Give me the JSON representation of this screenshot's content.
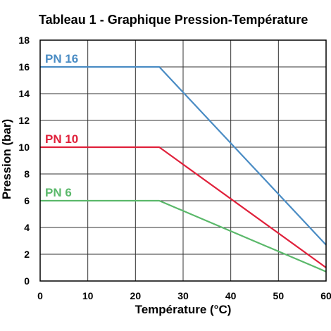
{
  "chart_data": {
    "type": "line",
    "title": "Tableau 1 - Graphique Pression-Température",
    "xlabel": "Température (°C)",
    "ylabel": "Pression (bar)",
    "xlim": [
      0,
      60
    ],
    "ylim": [
      0,
      18
    ],
    "xticks": [
      0,
      10,
      20,
      30,
      40,
      50,
      60
    ],
    "yticks": [
      0,
      2,
      4,
      6,
      8,
      10,
      12,
      14,
      16,
      18
    ],
    "grid": true,
    "legend": "inline-labels",
    "series": [
      {
        "name": "PN 16",
        "color": "#4a8cc4",
        "x": [
          0,
          25,
          60
        ],
        "y": [
          16,
          16,
          2.7
        ]
      },
      {
        "name": "PN 10",
        "color": "#e0203a",
        "x": [
          0,
          25,
          60
        ],
        "y": [
          10,
          10,
          1.0
        ]
      },
      {
        "name": "PN 6",
        "color": "#5ab86a",
        "x": [
          0,
          25,
          60
        ],
        "y": [
          6,
          6,
          0.7
        ]
      }
    ]
  }
}
